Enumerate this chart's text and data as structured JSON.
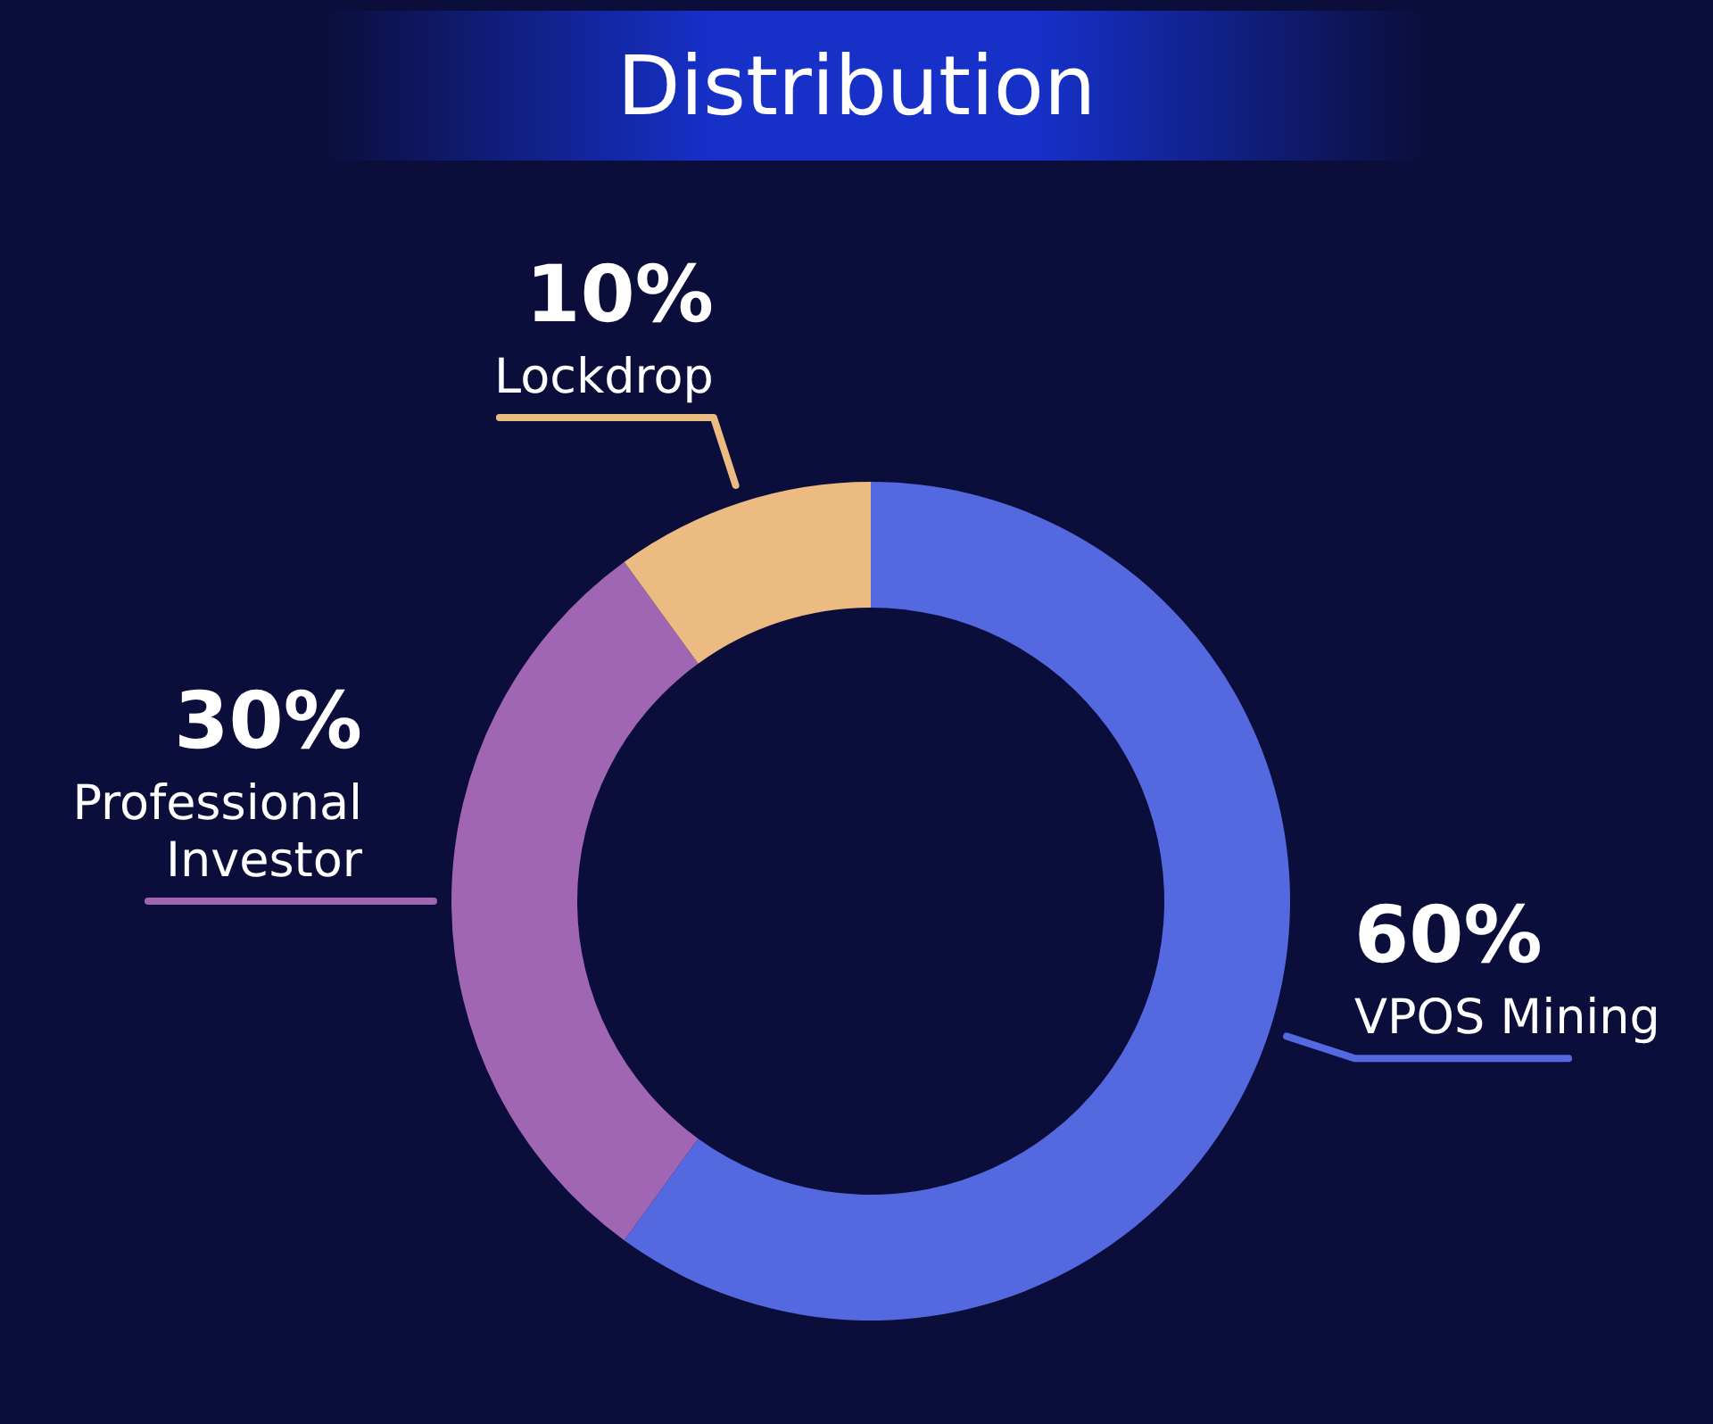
{
  "chart_data": {
    "type": "donut",
    "title": "Distribution",
    "categories": [
      "VPOS Mining",
      "Professional Investor",
      "Lockdrop"
    ],
    "values": [
      60,
      30,
      10
    ],
    "colors": [
      "#5468e0",
      "#a066b4",
      "#ecbb82"
    ],
    "value_labels": [
      "60%",
      "30%",
      "10%"
    ]
  }
}
